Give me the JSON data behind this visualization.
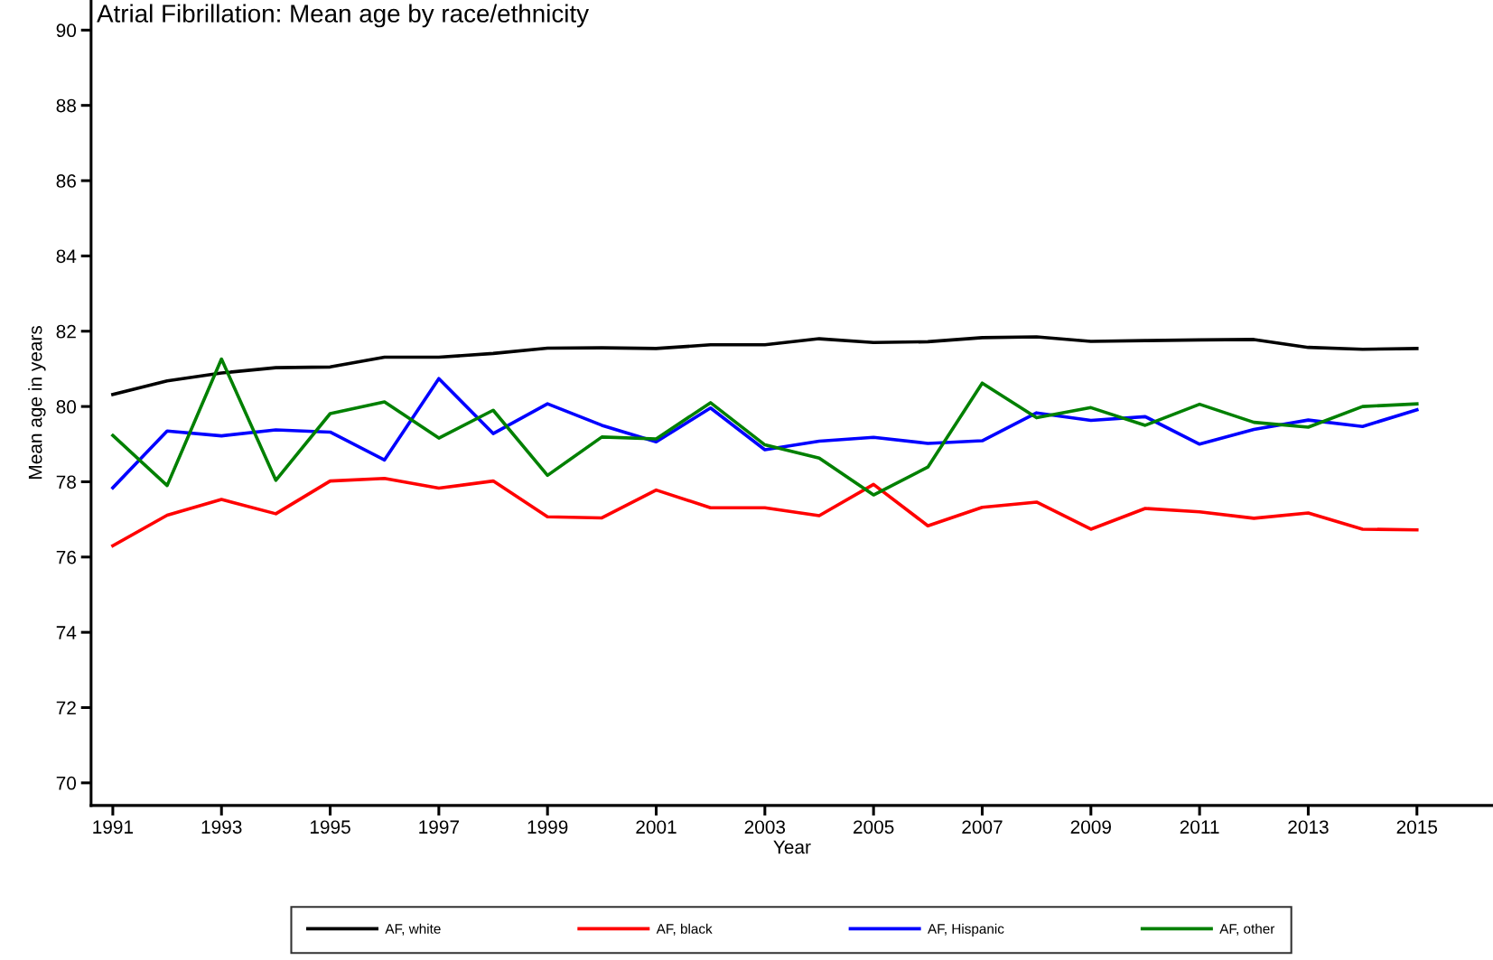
{
  "chart_data": {
    "type": "line",
    "title": "Atrial Fibrillation: Mean age by race/ethnicity",
    "xlabel": "Year",
    "ylabel": "Mean age in years",
    "x": [
      1991,
      1992,
      1993,
      1994,
      1995,
      1996,
      1997,
      1998,
      1999,
      2000,
      2001,
      2002,
      2003,
      2004,
      2005,
      2006,
      2007,
      2008,
      2009,
      2010,
      2011,
      2012,
      2013,
      2014,
      2015
    ],
    "series": [
      {
        "name": "AF, white",
        "color": "#000000",
        "values": [
          80.32,
          80.68,
          80.89,
          81.03,
          81.05,
          81.31,
          81.31,
          81.41,
          81.55,
          81.56,
          81.54,
          81.64,
          81.64,
          81.8,
          81.7,
          81.72,
          81.83,
          81.85,
          81.73,
          81.75,
          81.77,
          81.78,
          81.57,
          81.52,
          81.54
        ]
      },
      {
        "name": "AF, black",
        "color": "#ff0000",
        "values": [
          76.3,
          77.11,
          77.53,
          77.15,
          78.02,
          78.09,
          77.83,
          78.02,
          77.07,
          77.04,
          77.78,
          77.31,
          77.31,
          77.1,
          77.93,
          76.83,
          77.32,
          77.46,
          76.74,
          77.29,
          77.2,
          77.03,
          77.17,
          76.74,
          76.72
        ]
      },
      {
        "name": "AF, Hispanic",
        "color": "#0000ff",
        "values": [
          77.84,
          79.35,
          79.22,
          79.38,
          79.32,
          78.58,
          80.74,
          79.28,
          80.07,
          79.5,
          79.06,
          79.96,
          78.85,
          79.08,
          79.18,
          79.02,
          79.09,
          79.83,
          79.63,
          79.73,
          79.0,
          79.39,
          79.64,
          79.47,
          79.91
        ]
      },
      {
        "name": "AF, other",
        "color": "#008000",
        "values": [
          79.23,
          77.9,
          81.26,
          78.04,
          79.81,
          80.12,
          79.16,
          79.9,
          78.17,
          79.19,
          79.14,
          80.1,
          78.98,
          78.63,
          77.65,
          78.39,
          80.62,
          79.7,
          79.97,
          79.5,
          80.06,
          79.58,
          79.45,
          80.0,
          80.07
        ]
      }
    ],
    "xlim": [
      1990.6,
      2016.4
    ],
    "ylim": [
      69.4,
      90.8
    ],
    "xticks": [
      1991,
      1993,
      1995,
      1997,
      1999,
      2001,
      2003,
      2005,
      2007,
      2009,
      2011,
      2013,
      2015
    ],
    "yticks": [
      70,
      72,
      74,
      76,
      78,
      80,
      82,
      84,
      86,
      88,
      90
    ],
    "grid": false,
    "legend": "bottom",
    "marker": "none",
    "line_style": "solid"
  }
}
